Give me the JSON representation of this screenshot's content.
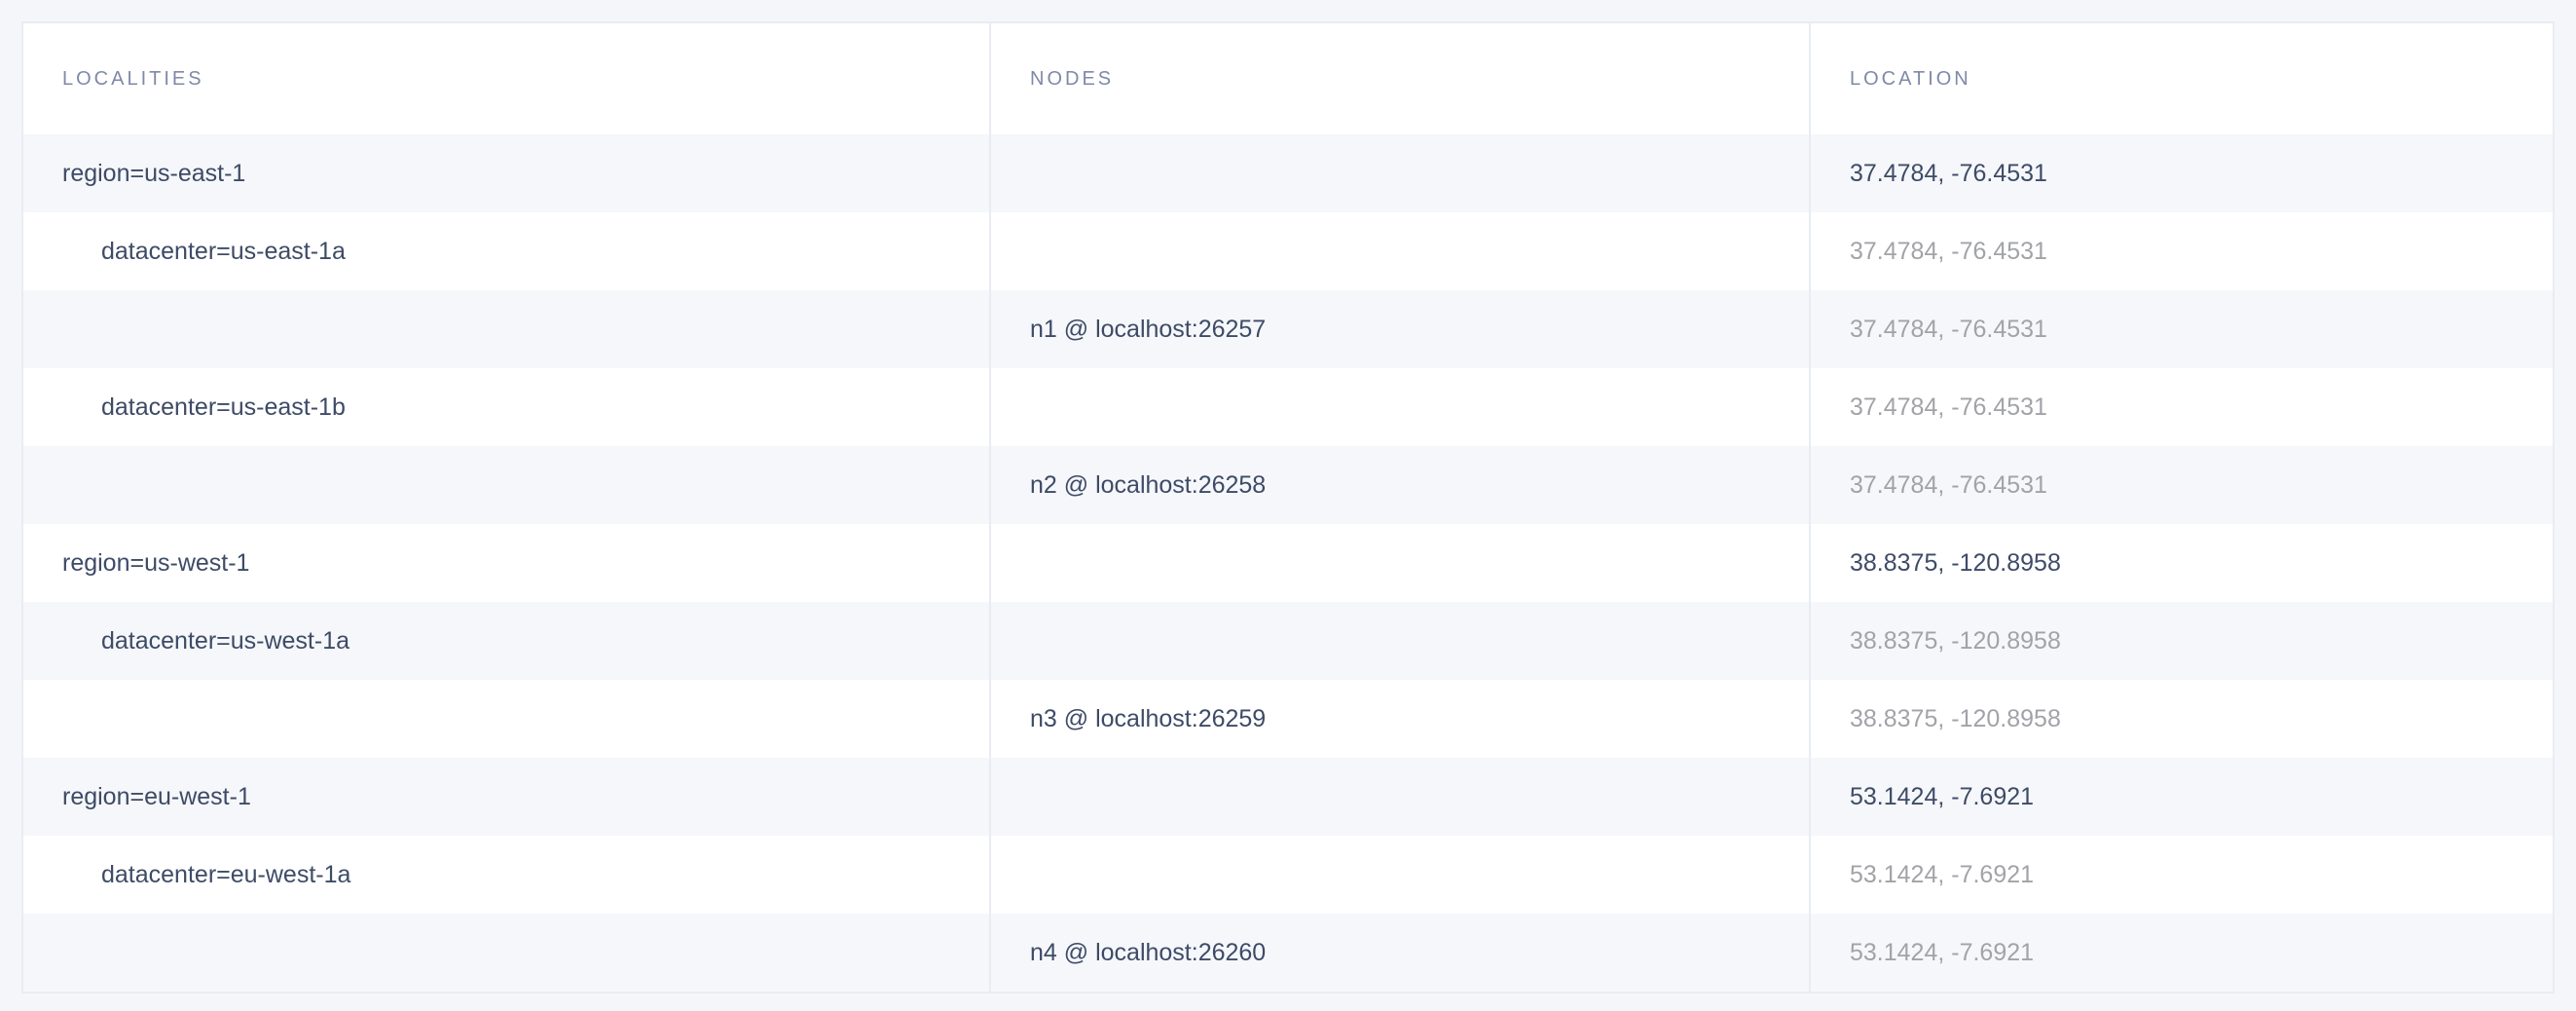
{
  "headers": {
    "localities": "LOCALITIES",
    "nodes": "NODES",
    "location": "LOCATION"
  },
  "rows": [
    {
      "locality": "region=us-east-1",
      "node": "",
      "location": "37.4784, -76.4531",
      "level": 0
    },
    {
      "locality": "datacenter=us-east-1a",
      "node": "",
      "location": "37.4784, -76.4531",
      "level": 1
    },
    {
      "locality": "",
      "node": "n1 @ localhost:26257",
      "location": "37.4784, -76.4531",
      "level": 2
    },
    {
      "locality": "datacenter=us-east-1b",
      "node": "",
      "location": "37.4784, -76.4531",
      "level": 1
    },
    {
      "locality": "",
      "node": "n2 @ localhost:26258",
      "location": "37.4784, -76.4531",
      "level": 2
    },
    {
      "locality": "region=us-west-1",
      "node": "",
      "location": "38.8375, -120.8958",
      "level": 0
    },
    {
      "locality": "datacenter=us-west-1a",
      "node": "",
      "location": "38.8375, -120.8958",
      "level": 1
    },
    {
      "locality": "",
      "node": "n3 @ localhost:26259",
      "location": "38.8375, -120.8958",
      "level": 2
    },
    {
      "locality": "region=eu-west-1",
      "node": "",
      "location": "53.1424, -7.6921",
      "level": 0
    },
    {
      "locality": "datacenter=eu-west-1a",
      "node": "",
      "location": "53.1424, -7.6921",
      "level": 1
    },
    {
      "locality": "",
      "node": "n4 @ localhost:26260",
      "location": "53.1424, -7.6921",
      "level": 2
    }
  ],
  "colors": {
    "text": "#3e4b66",
    "muted": "#a2a3a8",
    "header": "#7f89a8",
    "stripe": "#f5f7fa"
  }
}
